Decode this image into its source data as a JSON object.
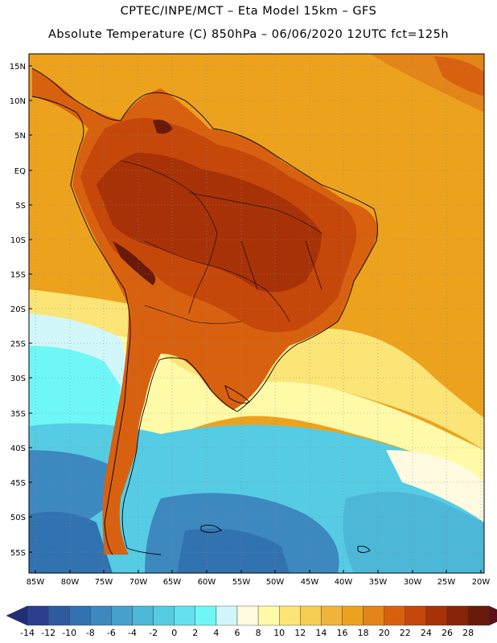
{
  "title_line1": "CPTEC/INPE/MCT –  Eta Model 15km – GFS",
  "title_line2": "Absolute Temperature (C) 850hPa – 06/06/2020 12UTC fct=125h",
  "lat_labels": [
    "15N",
    "10N",
    "5N",
    "EQ",
    "5S",
    "10S",
    "15S",
    "20S",
    "25S",
    "30S",
    "35S",
    "40S",
    "45S",
    "50S",
    "55S"
  ],
  "lon_labels": [
    "85W",
    "80W",
    "75W",
    "70W",
    "65W",
    "60W",
    "55W",
    "50W",
    "45W",
    "40W",
    "35W",
    "30W",
    "25W",
    "20W"
  ],
  "colorbar": {
    "labels": [
      "-14",
      "-12",
      "-10",
      "-8",
      "-6",
      "-4",
      "-2",
      "0",
      "2",
      "4",
      "6",
      "8",
      "10",
      "12",
      "14",
      "16",
      "18",
      "20",
      "22",
      "24",
      "26",
      "28"
    ],
    "colors": [
      "#2b3f8e",
      "#2e5aa0",
      "#3372b0",
      "#3d88bf",
      "#45a0cc",
      "#4db7d8",
      "#55cce3",
      "#62e0ed",
      "#6ff7f7",
      "#d2f7fb",
      "#fffae0",
      "#fffaa8",
      "#fbe577",
      "#f6cd51",
      "#f1b43a",
      "#eda21e",
      "#e38518",
      "#d86110",
      "#c6470a",
      "#a83207",
      "#8a2408",
      "#6a1a0a"
    ],
    "end_left": "#1e2f78",
    "end_right": "#5a0f1a"
  },
  "map": {
    "region": "South America",
    "ocean_colors": {
      "tropical": "#eda21e",
      "warm": "#e38518",
      "cool_blue": "#3d88bf",
      "cyan": "#55cce3"
    },
    "continent_interior_color": "#a83207"
  }
}
